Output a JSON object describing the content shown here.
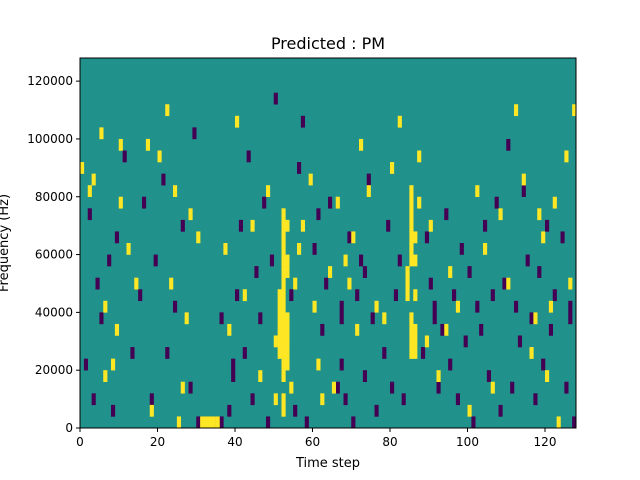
{
  "chart_data": {
    "type": "heatmap",
    "title": "Predicted : PM",
    "xlabel": "Time step",
    "ylabel": "Frequency (Hz)",
    "xlim": [
      0,
      128
    ],
    "ylim": [
      0,
      128000
    ],
    "x_ticks": [
      0,
      20,
      40,
      60,
      80,
      100,
      120
    ],
    "y_ticks": [
      0,
      20000,
      40000,
      60000,
      80000,
      100000,
      120000
    ],
    "x_tick_labels": [
      "0",
      "20",
      "40",
      "60",
      "80",
      "100",
      "120"
    ],
    "y_tick_labels": [
      "0",
      "20000",
      "40000",
      "60000",
      "80000",
      "100000",
      "120000"
    ],
    "n_time_steps": 128,
    "n_frequency_bins": 32,
    "background_level": 0.5,
    "colors": {
      "background": "#21918c",
      "high": "#fde725",
      "low": "#440154"
    },
    "cells": {
      "high": [
        [
          0,
          22
        ],
        [
          2,
          20
        ],
        [
          3,
          21
        ],
        [
          5,
          25
        ],
        [
          6,
          4
        ],
        [
          6,
          10
        ],
        [
          8,
          5
        ],
        [
          9,
          8
        ],
        [
          10,
          19
        ],
        [
          10,
          24
        ],
        [
          12,
          15
        ],
        [
          14,
          12
        ],
        [
          17,
          24
        ],
        [
          18,
          1
        ],
        [
          20,
          23
        ],
        [
          22,
          27
        ],
        [
          23,
          12
        ],
        [
          24,
          20
        ],
        [
          25,
          0
        ],
        [
          26,
          3
        ],
        [
          27,
          9
        ],
        [
          28,
          18
        ],
        [
          30,
          16
        ],
        [
          31,
          0
        ],
        [
          32,
          0
        ],
        [
          33,
          0
        ],
        [
          34,
          0
        ],
        [
          35,
          0
        ],
        [
          37,
          15
        ],
        [
          38,
          8
        ],
        [
          40,
          26
        ],
        [
          42,
          11
        ],
        [
          44,
          17
        ],
        [
          46,
          4
        ],
        [
          48,
          20
        ],
        [
          50,
          2
        ],
        [
          50,
          7
        ],
        [
          51,
          6
        ],
        [
          51,
          7
        ],
        [
          51,
          8
        ],
        [
          51,
          9
        ],
        [
          51,
          10
        ],
        [
          51,
          11
        ],
        [
          52,
          1
        ],
        [
          52,
          2
        ],
        [
          52,
          4
        ],
        [
          52,
          5
        ],
        [
          52,
          6
        ],
        [
          52,
          7
        ],
        [
          52,
          8
        ],
        [
          52,
          9
        ],
        [
          52,
          10
        ],
        [
          52,
          11
        ],
        [
          52,
          12
        ],
        [
          52,
          13
        ],
        [
          52,
          14
        ],
        [
          52,
          15
        ],
        [
          52,
          16
        ],
        [
          52,
          17
        ],
        [
          52,
          18
        ],
        [
          53,
          5
        ],
        [
          53,
          6
        ],
        [
          53,
          7
        ],
        [
          53,
          8
        ],
        [
          53,
          9
        ],
        [
          53,
          13
        ],
        [
          53,
          14
        ],
        [
          53,
          17
        ],
        [
          54,
          3
        ],
        [
          55,
          12
        ],
        [
          56,
          15
        ],
        [
          57,
          17
        ],
        [
          59,
          21
        ],
        [
          60,
          10
        ],
        [
          61,
          5
        ],
        [
          62,
          2
        ],
        [
          64,
          13
        ],
        [
          65,
          3
        ],
        [
          66,
          19
        ],
        [
          68,
          14
        ],
        [
          69,
          12
        ],
        [
          70,
          16
        ],
        [
          71,
          8
        ],
        [
          72,
          24
        ],
        [
          74,
          20
        ],
        [
          76,
          10
        ],
        [
          78,
          9
        ],
        [
          80,
          22
        ],
        [
          82,
          26
        ],
        [
          84,
          11
        ],
        [
          84,
          12
        ],
        [
          84,
          13
        ],
        [
          85,
          6
        ],
        [
          85,
          7
        ],
        [
          85,
          8
        ],
        [
          85,
          9
        ],
        [
          85,
          14
        ],
        [
          85,
          15
        ],
        [
          85,
          16
        ],
        [
          85,
          17
        ],
        [
          85,
          18
        ],
        [
          85,
          19
        ],
        [
          85,
          20
        ],
        [
          86,
          6
        ],
        [
          86,
          7
        ],
        [
          86,
          8
        ],
        [
          86,
          11
        ],
        [
          86,
          14
        ],
        [
          86,
          16
        ],
        [
          87,
          19
        ],
        [
          87,
          23
        ],
        [
          89,
          7
        ],
        [
          90,
          17
        ],
        [
          92,
          4
        ],
        [
          94,
          8
        ],
        [
          95,
          13
        ],
        [
          97,
          10
        ],
        [
          100,
          1
        ],
        [
          102,
          20
        ],
        [
          104,
          15
        ],
        [
          106,
          3
        ],
        [
          108,
          18
        ],
        [
          110,
          12
        ],
        [
          112,
          27
        ],
        [
          114,
          21
        ],
        [
          116,
          6
        ],
        [
          117,
          9
        ],
        [
          118,
          18
        ],
        [
          119,
          16
        ],
        [
          120,
          4
        ],
        [
          121,
          10
        ],
        [
          122,
          19
        ],
        [
          123,
          0
        ],
        [
          125,
          23
        ],
        [
          126,
          12
        ],
        [
          127,
          27
        ]
      ],
      "low": [
        [
          1,
          5
        ],
        [
          2,
          18
        ],
        [
          3,
          2
        ],
        [
          4,
          12
        ],
        [
          5,
          9
        ],
        [
          7,
          14
        ],
        [
          8,
          1
        ],
        [
          9,
          16
        ],
        [
          11,
          23
        ],
        [
          13,
          6
        ],
        [
          15,
          11
        ],
        [
          16,
          19
        ],
        [
          18,
          2
        ],
        [
          19,
          14
        ],
        [
          21,
          21
        ],
        [
          22,
          6
        ],
        [
          24,
          10
        ],
        [
          26,
          17
        ],
        [
          28,
          3
        ],
        [
          29,
          25
        ],
        [
          30,
          0
        ],
        [
          31,
          0
        ],
        [
          32,
          0
        ],
        [
          33,
          0
        ],
        [
          34,
          0
        ],
        [
          35,
          0
        ],
        [
          36,
          0
        ],
        [
          36,
          9
        ],
        [
          38,
          1
        ],
        [
          39,
          4
        ],
        [
          39,
          5
        ],
        [
          40,
          11
        ],
        [
          41,
          17
        ],
        [
          42,
          6
        ],
        [
          43,
          23
        ],
        [
          44,
          2
        ],
        [
          45,
          13
        ],
        [
          46,
          9
        ],
        [
          47,
          19
        ],
        [
          48,
          0
        ],
        [
          49,
          14
        ],
        [
          50,
          28
        ],
        [
          54,
          11
        ],
        [
          55,
          1
        ],
        [
          56,
          22
        ],
        [
          57,
          26
        ],
        [
          58,
          0
        ],
        [
          60,
          15
        ],
        [
          61,
          18
        ],
        [
          62,
          8
        ],
        [
          63,
          12
        ],
        [
          64,
          19
        ],
        [
          66,
          3
        ],
        [
          67,
          5
        ],
        [
          67,
          9
        ],
        [
          67,
          10
        ],
        [
          68,
          2
        ],
        [
          69,
          16
        ],
        [
          70,
          0
        ],
        [
          71,
          11
        ],
        [
          72,
          14
        ],
        [
          73,
          4
        ],
        [
          73,
          13
        ],
        [
          74,
          21
        ],
        [
          75,
          9
        ],
        [
          76,
          1
        ],
        [
          78,
          6
        ],
        [
          79,
          17
        ],
        [
          80,
          3
        ],
        [
          81,
          11
        ],
        [
          82,
          14
        ],
        [
          83,
          2
        ],
        [
          88,
          6
        ],
        [
          89,
          16
        ],
        [
          90,
          12
        ],
        [
          91,
          9
        ],
        [
          91,
          10
        ],
        [
          92,
          3
        ],
        [
          93,
          8
        ],
        [
          94,
          18
        ],
        [
          95,
          5
        ],
        [
          96,
          11
        ],
        [
          97,
          2
        ],
        [
          98,
          15
        ],
        [
          99,
          7
        ],
        [
          100,
          13
        ],
        [
          101,
          0
        ],
        [
          102,
          10
        ],
        [
          103,
          8
        ],
        [
          104,
          17
        ],
        [
          105,
          4
        ],
        [
          106,
          11
        ],
        [
          107,
          19
        ],
        [
          108,
          1
        ],
        [
          109,
          12
        ],
        [
          110,
          24
        ],
        [
          111,
          3
        ],
        [
          112,
          10
        ],
        [
          113,
          7
        ],
        [
          114,
          20
        ],
        [
          115,
          14
        ],
        [
          116,
          9
        ],
        [
          117,
          2
        ],
        [
          118,
          13
        ],
        [
          119,
          5
        ],
        [
          120,
          17
        ],
        [
          121,
          8
        ],
        [
          122,
          11
        ],
        [
          124,
          16
        ],
        [
          125,
          3
        ],
        [
          126,
          9
        ],
        [
          126,
          10
        ],
        [
          127,
          0
        ]
      ]
    }
  }
}
